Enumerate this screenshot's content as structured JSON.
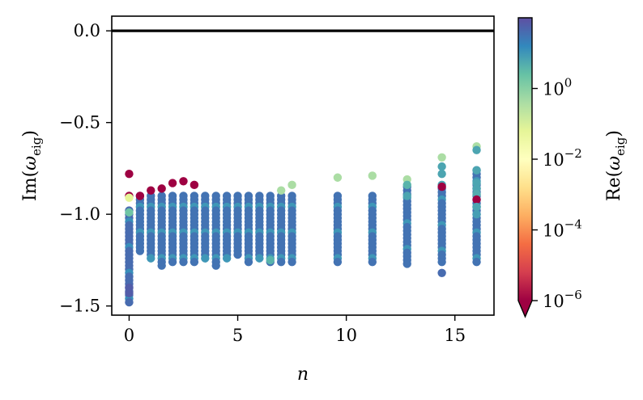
{
  "chart_data": {
    "type": "scatter",
    "xlabel": "n",
    "ylabel": "Im(ω_eig)",
    "colorbar_label": "Re(ω_eig)",
    "xlim": [
      -0.8,
      16.8
    ],
    "ylim": [
      -1.55,
      0.08
    ],
    "x_ticks": [
      0,
      5,
      10,
      15
    ],
    "y_ticks": [
      0.0,
      -0.5,
      -1.0,
      -1.5
    ],
    "y_tick_labels": [
      "0.0",
      "−0.5",
      "−1.0",
      "−1.5"
    ],
    "reference_line_y": 0.0,
    "colorbar": {
      "scale": "log",
      "colormap": "Spectral",
      "range": [
        1e-06,
        100.0
      ],
      "extend": "min",
      "ticks": [
        {
          "base": "10",
          "exp": "0",
          "value": 0
        },
        {
          "base": "10",
          "exp": "−2",
          "value": -2
        },
        {
          "base": "10",
          "exp": "−4",
          "value": -4
        },
        {
          "base": "10",
          "exp": "−6",
          "value": -6
        }
      ]
    },
    "columns": [
      {
        "x": 0.0,
        "ymin": -1.48,
        "ymax": -0.98,
        "logRe": 1.6,
        "extra": [
          {
            "y": -0.78,
            "logRe": -6
          },
          {
            "y": -0.9,
            "logRe": -6
          },
          {
            "y": -0.91,
            "logRe": -1.2
          },
          {
            "y": -0.99,
            "logRe": 0.3
          },
          {
            "y": -1.4,
            "logRe": 1.8
          },
          {
            "y": -1.43,
            "logRe": 1.8
          }
        ]
      },
      {
        "x": 0.5,
        "ymin": -1.21,
        "ymax": -0.9,
        "logRe": 1.5,
        "extra": [
          {
            "y": -0.9,
            "logRe": -6
          }
        ]
      },
      {
        "x": 1.0,
        "ymin": -1.24,
        "ymax": -0.9,
        "logRe": 1.5,
        "extra": [
          {
            "y": -0.87,
            "logRe": -6
          }
        ]
      },
      {
        "x": 1.5,
        "ymin": -1.27,
        "ymax": -0.9,
        "logRe": 1.5,
        "extra": [
          {
            "y": -0.86,
            "logRe": -6
          }
        ]
      },
      {
        "x": 2.0,
        "ymin": -1.25,
        "ymax": -0.9,
        "logRe": 1.5,
        "extra": [
          {
            "y": -0.83,
            "logRe": -6
          }
        ]
      },
      {
        "x": 2.5,
        "ymin": -1.26,
        "ymax": -0.9,
        "logRe": 1.5,
        "extra": [
          {
            "y": -0.82,
            "logRe": -6
          }
        ]
      },
      {
        "x": 3.0,
        "ymin": -1.25,
        "ymax": -0.9,
        "logRe": 1.5,
        "extra": [
          {
            "y": -0.84,
            "logRe": -6
          }
        ]
      },
      {
        "x": 3.5,
        "ymin": -1.24,
        "ymax": -0.9,
        "logRe": 1.5,
        "extra": []
      },
      {
        "x": 4.0,
        "ymin": -1.27,
        "ymax": -0.9,
        "logRe": 1.5,
        "extra": []
      },
      {
        "x": 4.5,
        "ymin": -1.24,
        "ymax": -0.9,
        "logRe": 1.5,
        "extra": []
      },
      {
        "x": 5.0,
        "ymin": -1.23,
        "ymax": -0.9,
        "logRe": 1.5,
        "extra": []
      },
      {
        "x": 5.5,
        "ymin": -1.25,
        "ymax": -0.9,
        "logRe": 1.5,
        "extra": []
      },
      {
        "x": 6.0,
        "ymin": -1.24,
        "ymax": -0.9,
        "logRe": 1.5,
        "extra": []
      },
      {
        "x": 6.5,
        "ymin": -1.26,
        "ymax": -0.9,
        "logRe": 1.5,
        "extra": [
          {
            "y": -1.25,
            "logRe": 0.6
          }
        ]
      },
      {
        "x": 7.0,
        "ymin": -1.26,
        "ymax": -0.9,
        "logRe": 1.5,
        "extra": [
          {
            "y": -0.87,
            "logRe": -0.4
          }
        ]
      },
      {
        "x": 7.5,
        "ymin": -1.26,
        "ymax": -0.9,
        "logRe": 1.5,
        "extra": [
          {
            "y": -0.84,
            "logRe": -0.4
          }
        ]
      },
      {
        "x": 9.6,
        "ymin": -1.26,
        "ymax": -0.9,
        "logRe": 1.5,
        "extra": [
          {
            "y": -0.8,
            "logRe": -0.4
          }
        ]
      },
      {
        "x": 11.2,
        "ymin": -1.26,
        "ymax": -0.9,
        "logRe": 1.5,
        "extra": [
          {
            "y": -0.79,
            "logRe": -0.4
          }
        ]
      },
      {
        "x": 12.8,
        "ymin": -1.26,
        "ymax": -0.85,
        "logRe": 1.5,
        "extra": [
          {
            "y": -0.81,
            "logRe": -0.4
          },
          {
            "y": -0.84,
            "logRe": 0.6
          },
          {
            "y": -0.9,
            "logRe": 0.8
          }
        ]
      },
      {
        "x": 14.4,
        "ymin": -1.26,
        "ymax": -0.86,
        "logRe": 1.5,
        "extra": [
          {
            "y": -0.69,
            "logRe": -0.4
          },
          {
            "y": -0.74,
            "logRe": 0.8
          },
          {
            "y": -0.78,
            "logRe": 0.8
          },
          {
            "y": -0.84,
            "logRe": 0.8
          },
          {
            "y": -0.85,
            "logRe": -6
          },
          {
            "y": -1.32,
            "logRe": 1.6
          }
        ]
      },
      {
        "x": 16.0,
        "ymin": -1.26,
        "ymax": -0.76,
        "logRe": 1.5,
        "extra": [
          {
            "y": -0.63,
            "logRe": -0.4
          },
          {
            "y": -0.65,
            "logRe": 0.8
          },
          {
            "y": -0.76,
            "logRe": 0.8
          },
          {
            "y": -0.83,
            "logRe": 0.8
          },
          {
            "y": -0.86,
            "logRe": 0.8
          },
          {
            "y": -0.89,
            "logRe": 0.7
          },
          {
            "y": -0.92,
            "logRe": -6
          },
          {
            "y": -0.96,
            "logRe": 0.8
          },
          {
            "y": -1.0,
            "logRe": 0.9
          }
        ]
      }
    ]
  }
}
